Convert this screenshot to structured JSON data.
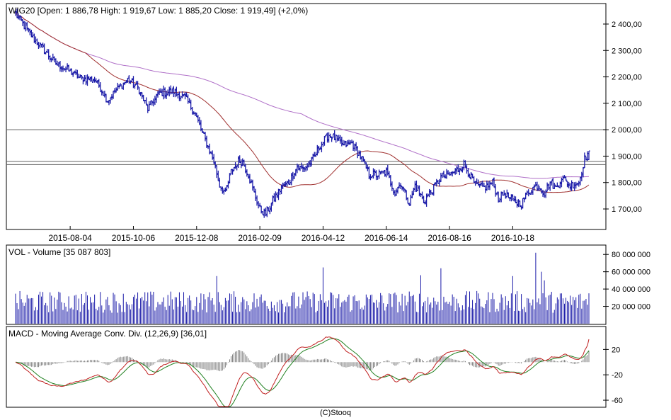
{
  "colors": {
    "price_bars": "#1a1aa8",
    "ma_short": "#a0302f",
    "ma_long": "#b070c8",
    "volume": "#1a1aa8",
    "macd": "#c02020",
    "signal": "#208020",
    "histogram": "#808080",
    "frame": "#000000",
    "grid": "#c8c8c8",
    "background": "#ffffff"
  },
  "footer": "(C)Stooq",
  "chart_data": [
    {
      "type": "line",
      "title": "WIG20 [Open: 1 886,78  High: 1 919,67  Low: 1 885,20  Close: 1 919,49] (+2,0%)",
      "xlabel": "",
      "ylabel": "",
      "x_ticks": [
        "2015-08-04",
        "2015-10-06",
        "2015-12-08",
        "2016-02-09",
        "2016-04-12",
        "2016-06-14",
        "2016-08-16",
        "2016-10-18"
      ],
      "x_tick_positions": [
        38,
        82,
        126,
        170,
        214,
        258,
        302,
        346
      ],
      "y_ticks": [
        1700,
        1800,
        1900,
        2000,
        2100,
        2200,
        2300,
        2400
      ],
      "y_tick_labels": [
        "1 700,00",
        "1 800,00",
        "1 900,00",
        "2 000,00",
        "2 100,00",
        "2 200,00",
        "2 300,00",
        "2 400,00"
      ],
      "ylim": [
        1625,
        2475
      ],
      "n_sessions": 400,
      "reference_lines": [
        2000,
        1880,
        1868
      ],
      "grid": false,
      "price_anchors": [
        [
          0,
          2440
        ],
        [
          5,
          2400
        ],
        [
          12,
          2350
        ],
        [
          20,
          2300
        ],
        [
          28,
          2250
        ],
        [
          35,
          2230
        ],
        [
          45,
          2195
        ],
        [
          55,
          2190
        ],
        [
          60,
          2150
        ],
        [
          64,
          2110
        ],
        [
          70,
          2150
        ],
        [
          78,
          2190
        ],
        [
          85,
          2160
        ],
        [
          92,
          2080
        ],
        [
          100,
          2140
        ],
        [
          110,
          2145
        ],
        [
          118,
          2120
        ],
        [
          125,
          2060
        ],
        [
          132,
          1960
        ],
        [
          138,
          1880
        ],
        [
          142,
          1790
        ],
        [
          146,
          1760
        ],
        [
          150,
          1840
        ],
        [
          155,
          1880
        ],
        [
          158,
          1880
        ],
        [
          162,
          1830
        ],
        [
          166,
          1760
        ],
        [
          170,
          1700
        ],
        [
          174,
          1680
        ],
        [
          180,
          1740
        ],
        [
          185,
          1780
        ],
        [
          190,
          1800
        ],
        [
          196,
          1860
        ],
        [
          200,
          1850
        ],
        [
          206,
          1880
        ],
        [
          212,
          1940
        ],
        [
          218,
          1980
        ],
        [
          222,
          1970
        ],
        [
          228,
          1940
        ],
        [
          234,
          1950
        ],
        [
          240,
          1900
        ],
        [
          246,
          1830
        ],
        [
          252,
          1830
        ],
        [
          258,
          1840
        ],
        [
          264,
          1760
        ],
        [
          268,
          1800
        ],
        [
          274,
          1720
        ],
        [
          278,
          1790
        ],
        [
          284,
          1730
        ],
        [
          290,
          1770
        ],
        [
          296,
          1820
        ],
        [
          302,
          1830
        ],
        [
          308,
          1850
        ],
        [
          312,
          1870
        ],
        [
          316,
          1830
        ],
        [
          320,
          1790
        ],
        [
          326,
          1780
        ],
        [
          332,
          1800
        ],
        [
          336,
          1740
        ],
        [
          340,
          1760
        ],
        [
          346,
          1730
        ],
        [
          352,
          1720
        ],
        [
          356,
          1760
        ],
        [
          360,
          1780
        ],
        [
          364,
          1790
        ],
        [
          368,
          1760
        ],
        [
          372,
          1800
        ],
        [
          376,
          1780
        ],
        [
          380,
          1820
        ],
        [
          386,
          1790
        ],
        [
          392,
          1800
        ],
        [
          396,
          1890
        ],
        [
          399,
          1919
        ]
      ],
      "ma_short_name": "",
      "ma_long_name": ""
    },
    {
      "type": "bar",
      "title": "VOL - Volume [35 087 803]",
      "y_ticks": [
        20000000,
        40000000,
        60000000,
        80000000
      ],
      "y_tick_labels": [
        "20 000 000",
        "40 000 000",
        "60 000 000",
        "80 000 000"
      ],
      "ylim": [
        0,
        90000000
      ],
      "base_volume": 28000000,
      "spikes": [
        [
          140,
          55000000
        ],
        [
          214,
          65000000
        ],
        [
          282,
          56000000
        ],
        [
          296,
          64000000
        ],
        [
          346,
          55000000
        ],
        [
          362,
          82000000
        ],
        [
          366,
          60000000
        ],
        [
          368,
          50000000
        ]
      ],
      "last_value": 35087803
    },
    {
      "type": "line",
      "title": "MACD - Moving Average Conv. Div. (12,26,9) [36,01]",
      "y_ticks": [
        20,
        -20,
        -60
      ],
      "y_tick_labels": [
        "20",
        "-20",
        "-60"
      ],
      "ylim": [
        -70,
        55
      ],
      "last_value": 36.01
    }
  ]
}
